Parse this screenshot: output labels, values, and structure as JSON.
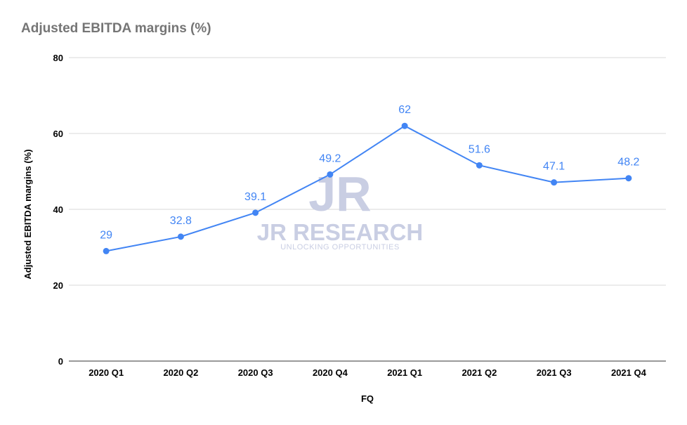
{
  "chart_data": {
    "type": "line",
    "title": "Adjusted EBITDA margins (%)",
    "xlabel": "FQ",
    "ylabel": "Adjusted EBITDA margins (%)",
    "categories": [
      "2020 Q1",
      "2020 Q2",
      "2020 Q3",
      "2020 Q4",
      "2021 Q1",
      "2021 Q2",
      "2021 Q3",
      "2021 Q4"
    ],
    "series": [
      {
        "name": "Adjusted EBITDA margins (%)",
        "values": [
          29,
          32.8,
          39.1,
          49.2,
          62,
          51.6,
          47.1,
          48.2
        ],
        "color": "#4285f4"
      }
    ],
    "ylim": [
      0,
      80
    ],
    "yticks": [
      0,
      20,
      40,
      60,
      80
    ],
    "grid": true,
    "legend": "none"
  },
  "watermark": {
    "logo": "JR",
    "name": "JR RESEARCH",
    "tagline": "UNLOCKING OPPORTUNITIES"
  }
}
